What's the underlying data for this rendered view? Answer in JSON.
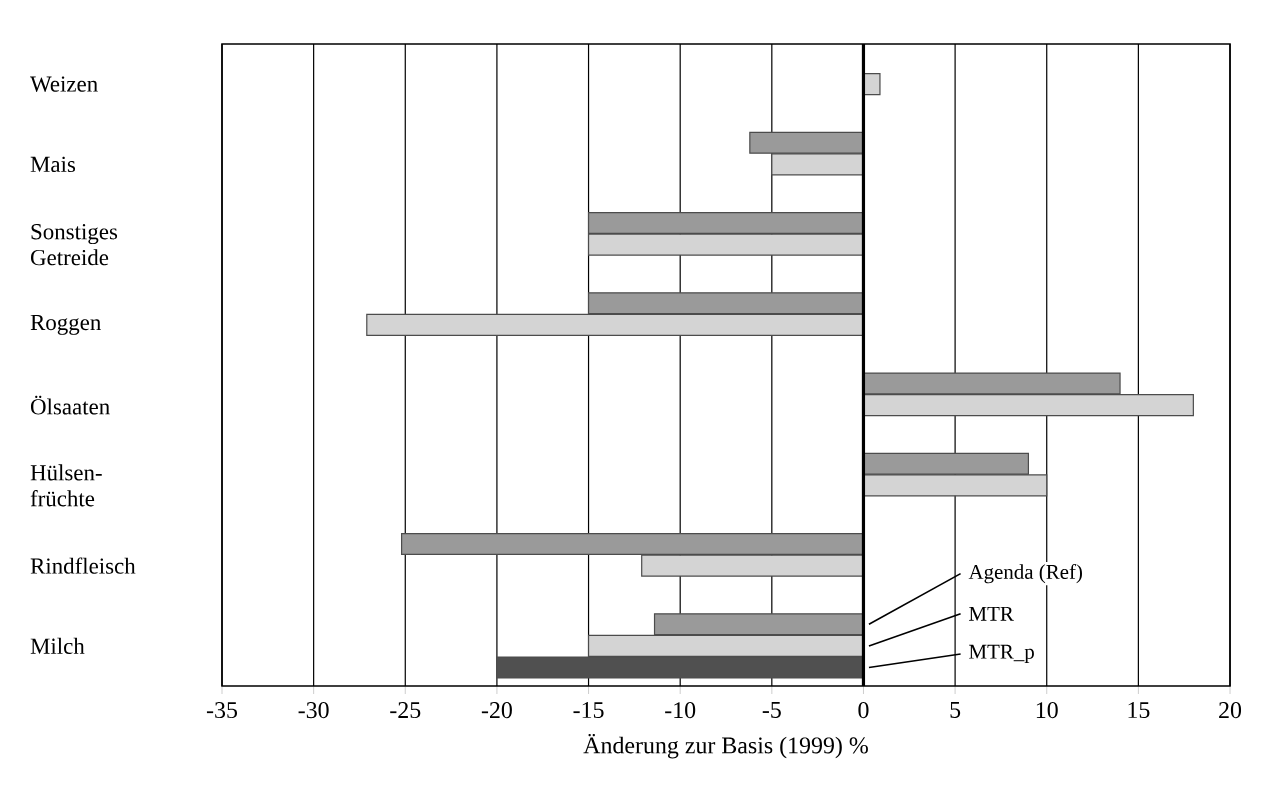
{
  "chart_data": {
    "type": "bar",
    "orientation": "horizontal",
    "xlabel": "Änderung zur Basis (1999) %",
    "categories": [
      "Weizen",
      "Mais",
      "Sonstiges Getreide",
      "Roggen",
      "Ölsaaten",
      "Hülsen-früchte",
      "Rindfleisch",
      "Milch"
    ],
    "series": [
      {
        "name": "Agenda (Ref)",
        "color": "#9a9a9a",
        "values": [
          null,
          -6.2,
          -15,
          -15,
          14,
          9,
          -25.2,
          -11.4
        ]
      },
      {
        "name": "MTR",
        "color": "#d4d4d4",
        "values": [
          0.9,
          -5,
          -15,
          -27.1,
          18,
          10,
          -12.1,
          -15
        ]
      },
      {
        "name": "MTR_p",
        "color": "#505050",
        "values": [
          null,
          null,
          null,
          null,
          null,
          null,
          null,
          -20
        ]
      }
    ],
    "xlim": [
      -35,
      20
    ],
    "xticks": [
      -35,
      -30,
      -25,
      -20,
      -15,
      -10,
      -5,
      0,
      5,
      10,
      15,
      20
    ],
    "grid": "x"
  }
}
